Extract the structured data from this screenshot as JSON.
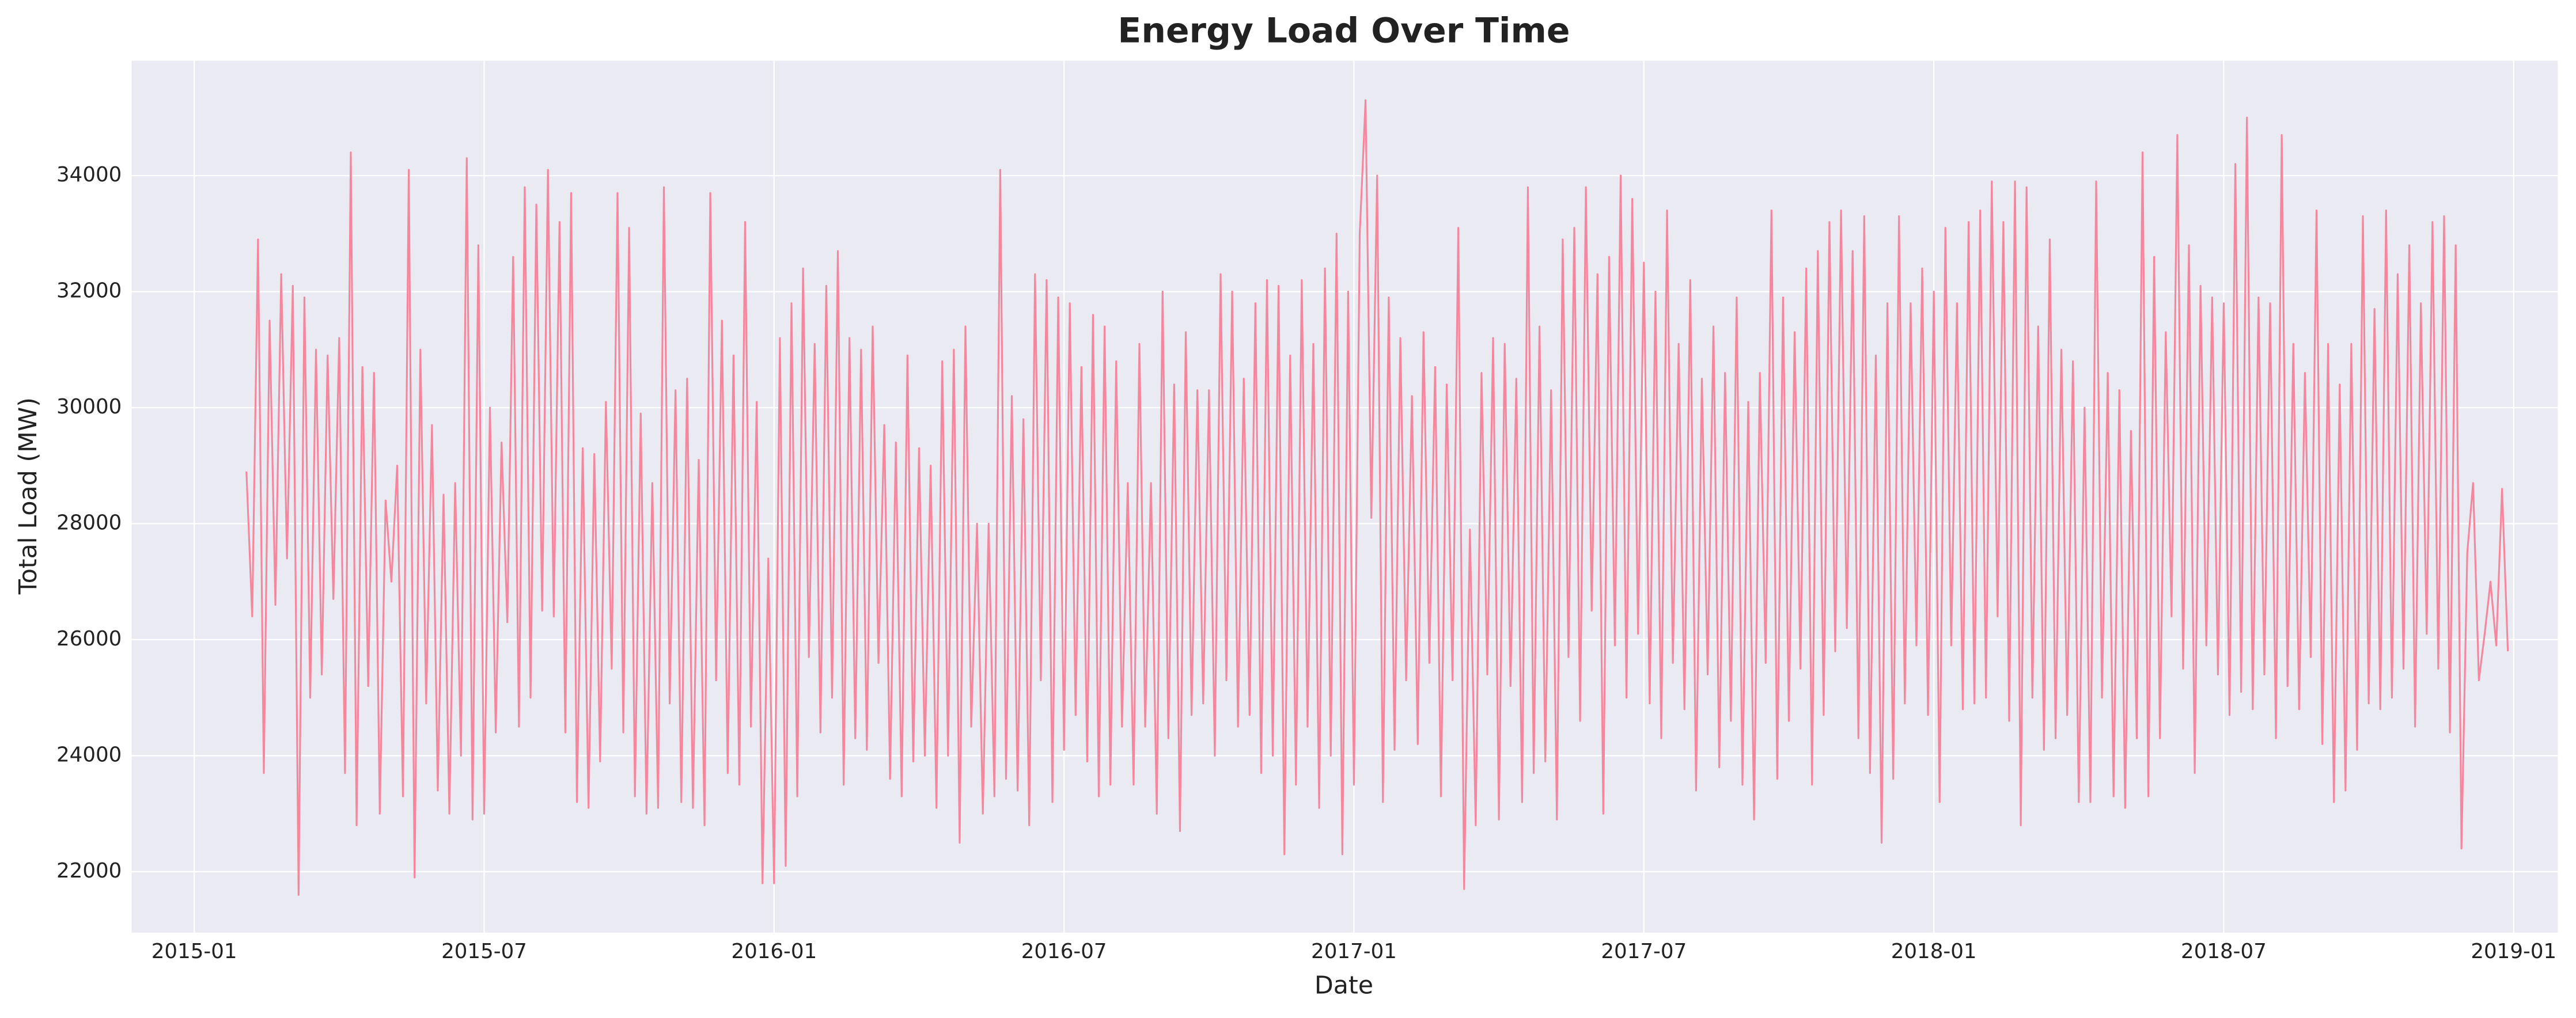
{
  "chart_data": {
    "type": "line",
    "title": "Energy Load Over Time",
    "x_label": "Date",
    "y_label": "Total Load (MW)",
    "grid": true,
    "xlim": [
      2014.892,
      2019.076
    ],
    "ylim": [
      20950,
      35980
    ],
    "xticks": [
      {
        "value": 2015.0,
        "label": "2015-01"
      },
      {
        "value": 2015.5,
        "label": "2015-07"
      },
      {
        "value": 2016.0,
        "label": "2016-01"
      },
      {
        "value": 2016.5,
        "label": "2016-07"
      },
      {
        "value": 2017.0,
        "label": "2017-01"
      },
      {
        "value": 2017.5,
        "label": "2017-07"
      },
      {
        "value": 2018.0,
        "label": "2018-01"
      },
      {
        "value": 2018.5,
        "label": "2018-07"
      },
      {
        "value": 2019.0,
        "label": "2019-01"
      }
    ],
    "yticks": [
      22000,
      24000,
      26000,
      28000,
      30000,
      32000,
      34000
    ],
    "x": [
      2015.09,
      2015.1,
      2015.11,
      2015.12,
      2015.13,
      2015.14,
      2015.15,
      2015.16,
      2015.17,
      2015.18,
      2015.19,
      2015.2,
      2015.21,
      2015.22,
      2015.23,
      2015.24,
      2015.25,
      2015.26,
      2015.27,
      2015.28,
      2015.29,
      2015.3,
      2015.31,
      2015.32,
      2015.33,
      2015.34,
      2015.35,
      2015.36,
      2015.37,
      2015.38,
      2015.39,
      2015.4,
      2015.41,
      2015.42,
      2015.43,
      2015.44,
      2015.45,
      2015.46,
      2015.47,
      2015.48,
      2015.49,
      2015.5,
      2015.51,
      2015.52,
      2015.53,
      2015.54,
      2015.55,
      2015.56,
      2015.57,
      2015.58,
      2015.59,
      2015.6,
      2015.61,
      2015.62,
      2015.63,
      2015.64,
      2015.65,
      2015.66,
      2015.67,
      2015.68,
      2015.69,
      2015.7,
      2015.71,
      2015.72,
      2015.73,
      2015.74,
      2015.75,
      2015.76,
      2015.77,
      2015.78,
      2015.79,
      2015.8,
      2015.81,
      2015.82,
      2015.83,
      2015.84,
      2015.85,
      2015.86,
      2015.87,
      2015.88,
      2015.89,
      2015.9,
      2015.91,
      2015.92,
      2015.93,
      2015.94,
      2015.95,
      2015.96,
      2015.97,
      2015.98,
      2015.99,
      2016.0,
      2016.01,
      2016.02,
      2016.03,
      2016.04,
      2016.05,
      2016.06,
      2016.07,
      2016.08,
      2016.09,
      2016.1,
      2016.11,
      2016.12,
      2016.13,
      2016.14,
      2016.15,
      2016.16,
      2016.17,
      2016.18,
      2016.19,
      2016.2,
      2016.21,
      2016.22,
      2016.23,
      2016.24,
      2016.25,
      2016.26,
      2016.27,
      2016.28,
      2016.29,
      2016.3,
      2016.31,
      2016.32,
      2016.33,
      2016.34,
      2016.35,
      2016.36,
      2016.37,
      2016.38,
      2016.39,
      2016.4,
      2016.41,
      2016.42,
      2016.43,
      2016.44,
      2016.45,
      2016.46,
      2016.47,
      2016.48,
      2016.49,
      2016.5,
      2016.51,
      2016.52,
      2016.53,
      2016.54,
      2016.55,
      2016.56,
      2016.57,
      2016.58,
      2016.59,
      2016.6,
      2016.61,
      2016.62,
      2016.63,
      2016.64,
      2016.65,
      2016.66,
      2016.67,
      2016.68,
      2016.69,
      2016.7,
      2016.71,
      2016.72,
      2016.73,
      2016.74,
      2016.75,
      2016.76,
      2016.77,
      2016.78,
      2016.79,
      2016.8,
      2016.81,
      2016.82,
      2016.83,
      2016.84,
      2016.85,
      2016.86,
      2016.87,
      2016.88,
      2016.89,
      2016.9,
      2016.91,
      2016.92,
      2016.93,
      2016.94,
      2016.95,
      2016.96,
      2016.97,
      2016.98,
      2016.99,
      2017.0,
      2017.01,
      2017.02,
      2017.03,
      2017.04,
      2017.05,
      2017.06,
      2017.07,
      2017.08,
      2017.09,
      2017.1,
      2017.11,
      2017.12,
      2017.13,
      2017.14,
      2017.15,
      2017.16,
      2017.17,
      2017.18,
      2017.19,
      2017.2,
      2017.21,
      2017.22,
      2017.23,
      2017.24,
      2017.25,
      2017.26,
      2017.27,
      2017.28,
      2017.29,
      2017.3,
      2017.31,
      2017.32,
      2017.33,
      2017.34,
      2017.35,
      2017.36,
      2017.37,
      2017.38,
      2017.39,
      2017.4,
      2017.41,
      2017.42,
      2017.43,
      2017.44,
      2017.45,
      2017.46,
      2017.47,
      2017.48,
      2017.49,
      2017.5,
      2017.51,
      2017.52,
      2017.53,
      2017.54,
      2017.55,
      2017.56,
      2017.57,
      2017.58,
      2017.59,
      2017.6,
      2017.61,
      2017.62,
      2017.63,
      2017.64,
      2017.65,
      2017.66,
      2017.67,
      2017.68,
      2017.69,
      2017.7,
      2017.71,
      2017.72,
      2017.73,
      2017.74,
      2017.75,
      2017.76,
      2017.77,
      2017.78,
      2017.79,
      2017.8,
      2017.81,
      2017.82,
      2017.83,
      2017.84,
      2017.85,
      2017.86,
      2017.87,
      2017.88,
      2017.89,
      2017.9,
      2017.91,
      2017.92,
      2017.93,
      2017.94,
      2017.95,
      2017.96,
      2017.97,
      2017.98,
      2017.99,
      2018.0,
      2018.01,
      2018.02,
      2018.03,
      2018.04,
      2018.05,
      2018.06,
      2018.07,
      2018.08,
      2018.09,
      2018.1,
      2018.11,
      2018.12,
      2018.13,
      2018.14,
      2018.15,
      2018.16,
      2018.17,
      2018.18,
      2018.19,
      2018.2,
      2018.21,
      2018.22,
      2018.23,
      2018.24,
      2018.25,
      2018.26,
      2018.27,
      2018.28,
      2018.29,
      2018.3,
      2018.31,
      2018.32,
      2018.33,
      2018.34,
      2018.35,
      2018.36,
      2018.37,
      2018.38,
      2018.39,
      2018.4,
      2018.41,
      2018.42,
      2018.43,
      2018.44,
      2018.45,
      2018.46,
      2018.47,
      2018.48,
      2018.49,
      2018.5,
      2018.51,
      2018.52,
      2018.53,
      2018.54,
      2018.55,
      2018.56,
      2018.57,
      2018.58,
      2018.59,
      2018.6,
      2018.61,
      2018.62,
      2018.63,
      2018.64,
      2018.65,
      2018.66,
      2018.67,
      2018.68,
      2018.69,
      2018.7,
      2018.71,
      2018.72,
      2018.73,
      2018.74,
      2018.75,
      2018.76,
      2018.77,
      2018.78,
      2018.79,
      2018.8,
      2018.81,
      2018.82,
      2018.83,
      2018.84,
      2018.85,
      2018.86,
      2018.87,
      2018.88,
      2018.89,
      2018.9,
      2018.91,
      2018.92,
      2018.93,
      2018.94,
      2018.95,
      2018.96,
      2018.97,
      2018.98,
      2018.99
    ],
    "series": [
      {
        "color": "#f4879d",
        "values": [
          28900,
          26400,
          32900,
          23700,
          31500,
          26600,
          32300,
          27400,
          32100,
          21600,
          31900,
          25000,
          31000,
          25400,
          30900,
          26700,
          31200,
          23700,
          34400,
          22800,
          30700,
          25200,
          30600,
          23000,
          28400,
          27000,
          29000,
          23300,
          34100,
          21900,
          31000,
          24900,
          29700,
          23400,
          28500,
          23000,
          28700,
          24000,
          34300,
          22900,
          32800,
          23000,
          30000,
          24400,
          29400,
          26300,
          32600,
          24500,
          33800,
          25000,
          33500,
          26500,
          34100,
          26400,
          33200,
          24400,
          33700,
          23200,
          29300,
          23100,
          29200,
          23900,
          30100,
          25500,
          33700,
          24400,
          33100,
          23300,
          29900,
          23000,
          28700,
          23100,
          33800,
          24900,
          30300,
          23200,
          30500,
          23100,
          29100,
          22800,
          33700,
          25300,
          31500,
          23700,
          30900,
          23500,
          33200,
          24500,
          30100,
          21800,
          27400,
          21800,
          31200,
          22100,
          31800,
          23300,
          32400,
          25700,
          31100,
          24400,
          32100,
          25000,
          32700,
          23500,
          31200,
          24300,
          31000,
          24100,
          31400,
          25600,
          29700,
          23600,
          29400,
          23300,
          30900,
          23900,
          29300,
          24000,
          29000,
          23100,
          30800,
          24000,
          31000,
          22500,
          31400,
          24500,
          28000,
          23000,
          28000,
          23300,
          34100,
          23600,
          30200,
          23400,
          29800,
          22800,
          32300,
          25300,
          32200,
          23200,
          31900,
          24100,
          31800,
          24700,
          30700,
          23900,
          31600,
          23300,
          31400,
          23500,
          30800,
          24500,
          28700,
          23500,
          31100,
          24500,
          28700,
          23000,
          32000,
          24300,
          30400,
          22700,
          31300,
          24700,
          30300,
          24900,
          30300,
          24000,
          32300,
          25300,
          32000,
          24500,
          30500,
          24700,
          31800,
          23700,
          32200,
          24000,
          32100,
          22300,
          30900,
          23500,
          32200,
          24500,
          31100,
          23100,
          32400,
          24000,
          33000,
          22300,
          32000,
          23500,
          33000,
          35300,
          28100,
          34000,
          23200,
          31900,
          24100,
          31200,
          25300,
          30200,
          24200,
          31300,
          25600,
          30700,
          23300,
          30400,
          25300,
          33100,
          21700,
          27900,
          22800,
          30600,
          25400,
          31200,
          22900,
          31100,
          25200,
          30500,
          23200,
          33800,
          23700,
          31400,
          23900,
          30300,
          22900,
          32900,
          25700,
          33100,
          24600,
          33800,
          26500,
          32300,
          23000,
          32600,
          25900,
          34000,
          25000,
          33600,
          26100,
          32500,
          24900,
          32000,
          24300,
          33400,
          25600,
          31100,
          24800,
          32200,
          23400,
          30500,
          25400,
          31400,
          23800,
          30600,
          24600,
          31900,
          23500,
          30100,
          22900,
          30600,
          25600,
          33400,
          23600,
          31900,
          24600,
          31300,
          25500,
          32400,
          23500,
          32700,
          24700,
          33200,
          25800,
          33400,
          26200,
          32700,
          24300,
          33300,
          23700,
          30900,
          22500,
          31800,
          23600,
          33300,
          24900,
          31800,
          25900,
          32400,
          24700,
          32000,
          23200,
          33100,
          25900,
          31800,
          24800,
          33200,
          24900,
          33400,
          25000,
          33900,
          26400,
          33200,
          24600,
          33900,
          22800,
          33800,
          25000,
          31400,
          24100,
          32900,
          24300,
          31000,
          24700,
          30800,
          23200,
          30000,
          23200,
          33900,
          25000,
          30600,
          23300,
          30300,
          23100,
          29600,
          24300,
          34400,
          23300,
          32600,
          24300,
          31300,
          26400,
          34700,
          25500,
          32800,
          23700,
          32100,
          25900,
          31900,
          25400,
          31800,
          24700,
          34200,
          25100,
          35000,
          24800,
          31900,
          25400,
          31800,
          24300,
          34700,
          25200,
          31100,
          24800,
          30600,
          25700,
          33400,
          24200,
          31100,
          23200,
          30400,
          23400,
          31100,
          24100,
          33300,
          24900,
          31700,
          24800,
          33400,
          25000,
          32300,
          25500,
          32800,
          24500,
          31800,
          26100,
          33200,
          25500,
          33300,
          24400,
          32800,
          22400,
          27500,
          28700,
          25300,
          26100,
          27000,
          25900,
          28600,
          25800
        ]
      }
    ]
  }
}
